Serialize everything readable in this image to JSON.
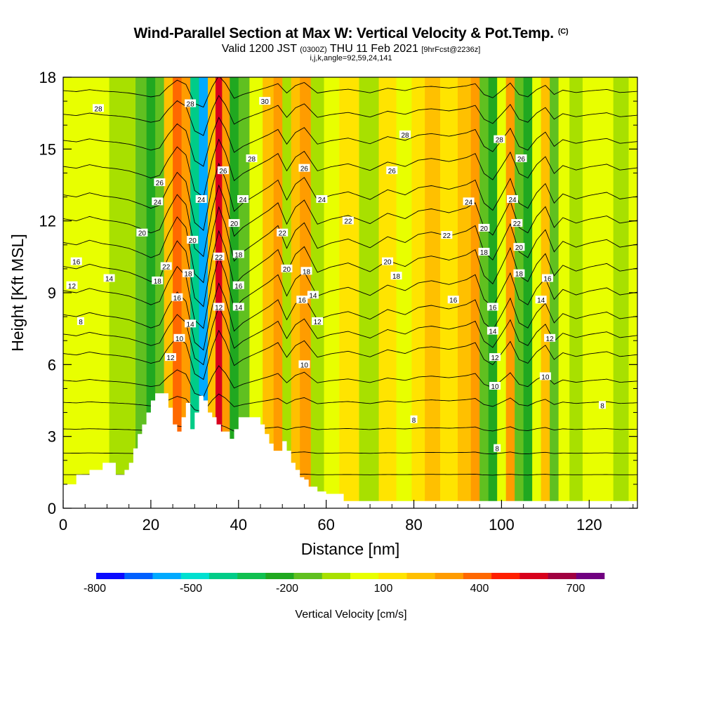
{
  "chart_data": {
    "type": "heatmap",
    "title": "Wind-Parallel Section at Max W: Vertical Velocity & Pot.Temp.",
    "title_mark": "(C)",
    "subtitle_main": "Valid 1200 JST",
    "subtitle_utc": "(0300Z)",
    "subtitle_date": "THU 11 Feb 2021",
    "subtitle_fcst": "[9hrFcst@2236z]",
    "subtitle2": "i,j,k,angle=92,59,24,141",
    "xlabel": "Distance [nm]",
    "ylabel": "Height [Kft MSL]",
    "xlim": [
      0,
      131
    ],
    "ylim": [
      0,
      18
    ],
    "xticks": [
      "0",
      "20",
      "40",
      "60",
      "80",
      "100",
      "120"
    ],
    "yticks": [
      "0",
      "3",
      "6",
      "9",
      "12",
      "15",
      "18"
    ],
    "colorbar": {
      "label": "Vertical Velocity [cm/s]",
      "tick_labels": [
        "-800",
        "-500",
        "-200",
        "100",
        "400",
        "700"
      ],
      "colors": [
        "#0a0aff",
        "#0060ff",
        "#00aaff",
        "#00e0d0",
        "#00cc88",
        "#10c050",
        "#20a820",
        "#60c020",
        "#a8e000",
        "#e8ff00",
        "#ffe400",
        "#ffc000",
        "#ff9c00",
        "#ff6800",
        "#ff2000",
        "#d8001c",
        "#a00040",
        "#700080"
      ]
    },
    "shading_columns": [
      {
        "x": 0,
        "w": 40
      },
      {
        "x": 3,
        "w": 0
      },
      {
        "x": 6,
        "w": 80
      },
      {
        "x": 9,
        "w": 20
      },
      {
        "x": 12,
        "w": -10
      },
      {
        "x": 15,
        "w": -60
      },
      {
        "x": 18,
        "w": -150
      },
      {
        "x": 20,
        "w": -220
      },
      {
        "x": 22,
        "w": -160
      },
      {
        "x": 24,
        "w": 200
      },
      {
        "x": 26,
        "w": 480
      },
      {
        "x": 28,
        "w": 300
      },
      {
        "x": 30,
        "w": -500
      },
      {
        "x": 32,
        "w": -650
      },
      {
        "x": 34,
        "w": 200
      },
      {
        "x": 35.5,
        "w": 650
      },
      {
        "x": 37,
        "w": 350
      },
      {
        "x": 39,
        "w": -280
      },
      {
        "x": 41,
        "w": -120
      },
      {
        "x": 44,
        "w": 40
      },
      {
        "x": 47,
        "w": 200
      },
      {
        "x": 49,
        "w": 330
      },
      {
        "x": 51,
        "w": -60
      },
      {
        "x": 53,
        "w": 250
      },
      {
        "x": 55,
        "w": 380
      },
      {
        "x": 58,
        "w": -60
      },
      {
        "x": 61,
        "w": 30
      },
      {
        "x": 65,
        "w": 100
      },
      {
        "x": 70,
        "w": -50
      },
      {
        "x": 74,
        "w": 140
      },
      {
        "x": 78,
        "w": 40
      },
      {
        "x": 81,
        "w": 180
      },
      {
        "x": 84,
        "w": 220
      },
      {
        "x": 88,
        "w": 150
      },
      {
        "x": 92,
        "w": 240
      },
      {
        "x": 94,
        "w": 330
      },
      {
        "x": 96,
        "w": -120
      },
      {
        "x": 98,
        "w": -260
      },
      {
        "x": 100,
        "w": 40
      },
      {
        "x": 102,
        "w": 360
      },
      {
        "x": 104,
        "w": -120
      },
      {
        "x": 106,
        "w": -220
      },
      {
        "x": 108,
        "w": 80
      },
      {
        "x": 110,
        "w": 260
      },
      {
        "x": 112,
        "w": -120
      },
      {
        "x": 114,
        "w": 60
      },
      {
        "x": 117,
        "w": -40
      },
      {
        "x": 120,
        "w": 30
      },
      {
        "x": 124,
        "w": 90
      },
      {
        "x": 127,
        "w": -40
      },
      {
        "x": 131,
        "w": 10
      }
    ],
    "terrain": [
      {
        "x": 0,
        "y": 1.0
      },
      {
        "x": 2,
        "y": 1.0
      },
      {
        "x": 3,
        "y": 1.4
      },
      {
        "x": 5,
        "y": 1.4
      },
      {
        "x": 6,
        "y": 1.6
      },
      {
        "x": 8,
        "y": 1.6
      },
      {
        "x": 9,
        "y": 1.9
      },
      {
        "x": 11,
        "y": 1.9
      },
      {
        "x": 12,
        "y": 1.4
      },
      {
        "x": 13,
        "y": 1.4
      },
      {
        "x": 14,
        "y": 1.6
      },
      {
        "x": 15,
        "y": 1.9
      },
      {
        "x": 16,
        "y": 2.5
      },
      {
        "x": 17,
        "y": 3.1
      },
      {
        "x": 18,
        "y": 3.5
      },
      {
        "x": 19,
        "y": 4.0
      },
      {
        "x": 20,
        "y": 4.5
      },
      {
        "x": 21,
        "y": 4.8
      },
      {
        "x": 23,
        "y": 4.8
      },
      {
        "x": 24,
        "y": 4.2
      },
      {
        "x": 25,
        "y": 3.5
      },
      {
        "x": 26,
        "y": 3.2
      },
      {
        "x": 27,
        "y": 3.8
      },
      {
        "x": 28,
        "y": 4.4
      },
      {
        "x": 29,
        "y": 3.3
      },
      {
        "x": 30,
        "y": 4.0
      },
      {
        "x": 31,
        "y": 4.7
      },
      {
        "x": 32,
        "y": 4.5
      },
      {
        "x": 33,
        "y": 4.0
      },
      {
        "x": 34,
        "y": 3.8
      },
      {
        "x": 35,
        "y": 3.5
      },
      {
        "x": 36,
        "y": 3.2
      },
      {
        "x": 37,
        "y": 3.2
      },
      {
        "x": 38,
        "y": 2.9
      },
      {
        "x": 39,
        "y": 3.3
      },
      {
        "x": 40,
        "y": 3.8
      },
      {
        "x": 44,
        "y": 3.8
      },
      {
        "x": 45,
        "y": 3.5
      },
      {
        "x": 46,
        "y": 3.1
      },
      {
        "x": 47,
        "y": 2.7
      },
      {
        "x": 48,
        "y": 2.4
      },
      {
        "x": 49,
        "y": 2.4
      },
      {
        "x": 50,
        "y": 2.8
      },
      {
        "x": 51,
        "y": 2.4
      },
      {
        "x": 52,
        "y": 1.9
      },
      {
        "x": 53,
        "y": 1.6
      },
      {
        "x": 54,
        "y": 1.3
      },
      {
        "x": 55,
        "y": 1.2
      },
      {
        "x": 56,
        "y": 0.9
      },
      {
        "x": 58,
        "y": 0.7
      },
      {
        "x": 60,
        "y": 0.6
      },
      {
        "x": 62,
        "y": 0.6
      },
      {
        "x": 64,
        "y": 0.3
      },
      {
        "x": 131,
        "y": 0.3
      }
    ],
    "theta_contours": [
      {
        "base": 1.4,
        "amp": 0.05,
        "label": "",
        "label_at": []
      },
      {
        "base": 2.3,
        "amp": 0.1,
        "label": "",
        "label_at": []
      },
      {
        "base": 3.3,
        "amp": 0.2,
        "label": "",
        "label_at": []
      },
      {
        "base": 4.4,
        "amp": 0.4,
        "label": "8",
        "label_at": [
          {
            "x": 99,
            "y": 2.5
          },
          {
            "x": 80,
            "y": 3.7
          },
          {
            "x": 123,
            "y": 4.3
          }
        ]
      },
      {
        "base": 5.3,
        "amp": 0.7,
        "label": "",
        "label_at": []
      },
      {
        "base": 6.4,
        "amp": 1.1,
        "label": "10",
        "label_at": [
          {
            "x": 26.5,
            "y": 7.1
          },
          {
            "x": 55,
            "y": 6.0
          },
          {
            "x": 98.5,
            "y": 5.1
          },
          {
            "x": 110,
            "y": 5.5
          }
        ]
      },
      {
        "base": 7.2,
        "amp": 1.3,
        "label": "12",
        "label_at": [
          {
            "x": 24.5,
            "y": 6.3
          },
          {
            "x": 35.5,
            "y": 8.4
          },
          {
            "x": 58,
            "y": 7.8
          },
          {
            "x": 98.5,
            "y": 6.3
          },
          {
            "x": 111,
            "y": 7.1
          }
        ]
      },
      {
        "base": 8.0,
        "amp": 1.5,
        "label": "14",
        "label_at": [
          {
            "x": 10.5,
            "y": 9.6
          },
          {
            "x": 29,
            "y": 7.7
          },
          {
            "x": 40,
            "y": 8.4
          },
          {
            "x": 57,
            "y": 8.9
          },
          {
            "x": 98,
            "y": 7.4
          },
          {
            "x": 109,
            "y": 8.7
          }
        ]
      },
      {
        "base": 9.0,
        "amp": 1.6,
        "label": "16",
        "label_at": [
          {
            "x": 26,
            "y": 8.8
          },
          {
            "x": 40,
            "y": 9.3
          },
          {
            "x": 54.5,
            "y": 8.7
          },
          {
            "x": 89,
            "y": 8.7
          },
          {
            "x": 98,
            "y": 8.4
          },
          {
            "x": 110.5,
            "y": 9.6
          }
        ]
      },
      {
        "base": 10.0,
        "amp": 1.7,
        "label": "18",
        "label_at": [
          {
            "x": 21.5,
            "y": 9.5
          },
          {
            "x": 28.5,
            "y": 9.8
          },
          {
            "x": 40,
            "y": 10.6
          },
          {
            "x": 55.5,
            "y": 9.9
          },
          {
            "x": 76,
            "y": 9.7
          },
          {
            "x": 96,
            "y": 10.7
          },
          {
            "x": 104,
            "y": 9.8
          }
        ]
      },
      {
        "base": 11.0,
        "amp": 1.7,
        "label": "20",
        "label_at": [
          {
            "x": 18,
            "y": 11.5
          },
          {
            "x": 29.5,
            "y": 11.2
          },
          {
            "x": 39,
            "y": 11.9
          },
          {
            "x": 51,
            "y": 10.0
          },
          {
            "x": 74,
            "y": 10.3
          },
          {
            "x": 96,
            "y": 11.7
          },
          {
            "x": 104,
            "y": 10.9
          }
        ]
      },
      {
        "base": 12.0,
        "amp": 1.6,
        "label": "22",
        "label_at": [
          {
            "x": 23.5,
            "y": 10.1
          },
          {
            "x": 35.5,
            "y": 10.5
          },
          {
            "x": 50,
            "y": 11.5
          },
          {
            "x": 65,
            "y": 12.0
          },
          {
            "x": 87.5,
            "y": 11.4
          },
          {
            "x": 103.5,
            "y": 11.9
          }
        ]
      },
      {
        "base": 13.0,
        "amp": 1.5,
        "label": "24",
        "label_at": [
          {
            "x": 21.5,
            "y": 12.8
          },
          {
            "x": 31.5,
            "y": 12.9
          },
          {
            "x": 41,
            "y": 12.9
          },
          {
            "x": 59,
            "y": 12.9
          },
          {
            "x": 92.5,
            "y": 12.8
          },
          {
            "x": 102.5,
            "y": 12.9
          }
        ]
      },
      {
        "base": 14.2,
        "amp": 1.3,
        "label": "26",
        "label_at": [
          {
            "x": 22,
            "y": 13.6
          },
          {
            "x": 36.5,
            "y": 14.1
          },
          {
            "x": 55,
            "y": 14.2
          },
          {
            "x": 75,
            "y": 14.1
          },
          {
            "x": 104.5,
            "y": 14.6
          }
        ]
      },
      {
        "base": 15.3,
        "amp": 1.1,
        "label": "28",
        "label_at": [
          {
            "x": 8,
            "y": 16.7
          },
          {
            "x": 29,
            "y": 16.9
          },
          {
            "x": 43,
            "y": 14.6
          },
          {
            "x": 78,
            "y": 15.6
          },
          {
            "x": 99.5,
            "y": 15.4
          }
        ]
      },
      {
        "base": 16.4,
        "amp": 0.9,
        "label": "30",
        "label_at": [
          {
            "x": 46,
            "y": 17.0
          }
        ]
      },
      {
        "base": 17.4,
        "amp": 0.7,
        "label": "",
        "label_at": []
      }
    ],
    "left_edge_labels": [
      {
        "label": "16",
        "x": 3,
        "y": 10.3
      },
      {
        "label": "12",
        "x": 2,
        "y": 9.3
      },
      {
        "label": "8",
        "x": 4,
        "y": 7.8
      }
    ],
    "grid": false,
    "legend": "bottom colorbar"
  }
}
